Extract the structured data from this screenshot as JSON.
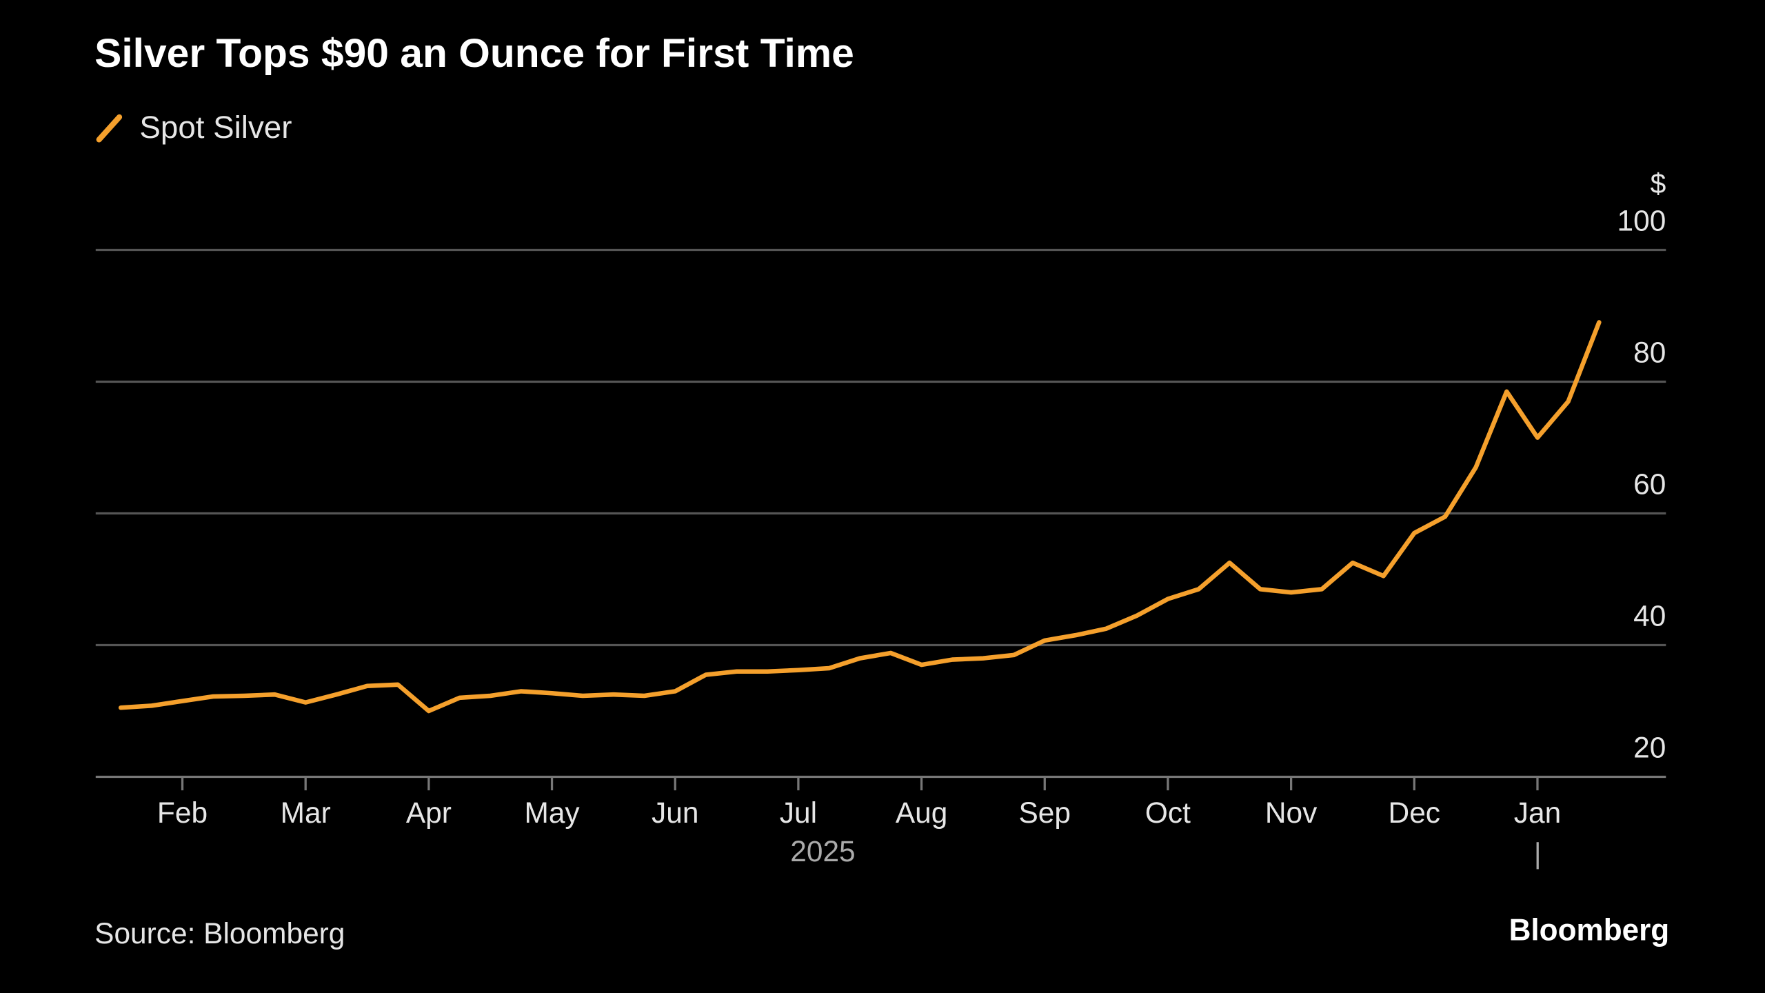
{
  "chart_data": {
    "type": "line",
    "title": "Silver Tops $90 an Ounce for First Time",
    "y_unit": "$",
    "x_year_label": "2025",
    "source": "Source: Bloomberg",
    "brand": "Bloomberg",
    "categories": [
      null,
      null,
      "Feb",
      null,
      null,
      null,
      "Mar",
      null,
      null,
      null,
      "Apr",
      null,
      null,
      null,
      "May",
      null,
      null,
      null,
      "Jun",
      null,
      null,
      null,
      "Jul",
      null,
      null,
      null,
      "Aug",
      null,
      null,
      null,
      "Sep",
      null,
      null,
      null,
      "Oct",
      null,
      null,
      null,
      "Nov",
      null,
      null,
      null,
      "Dec",
      null,
      null,
      null,
      "Jan",
      null,
      null
    ],
    "series": [
      {
        "name": "Spot Silver",
        "color": "#f5a02c",
        "values": [
          30.5,
          30.8,
          31.5,
          32.2,
          32.3,
          32.5,
          31.3,
          32.5,
          33.8,
          34.0,
          30.0,
          32.0,
          32.3,
          33.0,
          32.7,
          32.3,
          32.5,
          32.3,
          33.0,
          35.5,
          36.0,
          36.0,
          36.2,
          36.5,
          38.0,
          38.8,
          37.0,
          37.8,
          38.0,
          38.5,
          40.7,
          41.5,
          42.5,
          44.5,
          47.0,
          48.5,
          52.5,
          48.5,
          48.0,
          48.5,
          52.5,
          50.5,
          57.0,
          59.5,
          67.0,
          78.5,
          71.5,
          77.0,
          89.0
        ]
      }
    ],
    "ylim": [
      20,
      100
    ],
    "yticks": [
      20,
      40,
      60,
      80,
      100
    ],
    "grid": true
  }
}
